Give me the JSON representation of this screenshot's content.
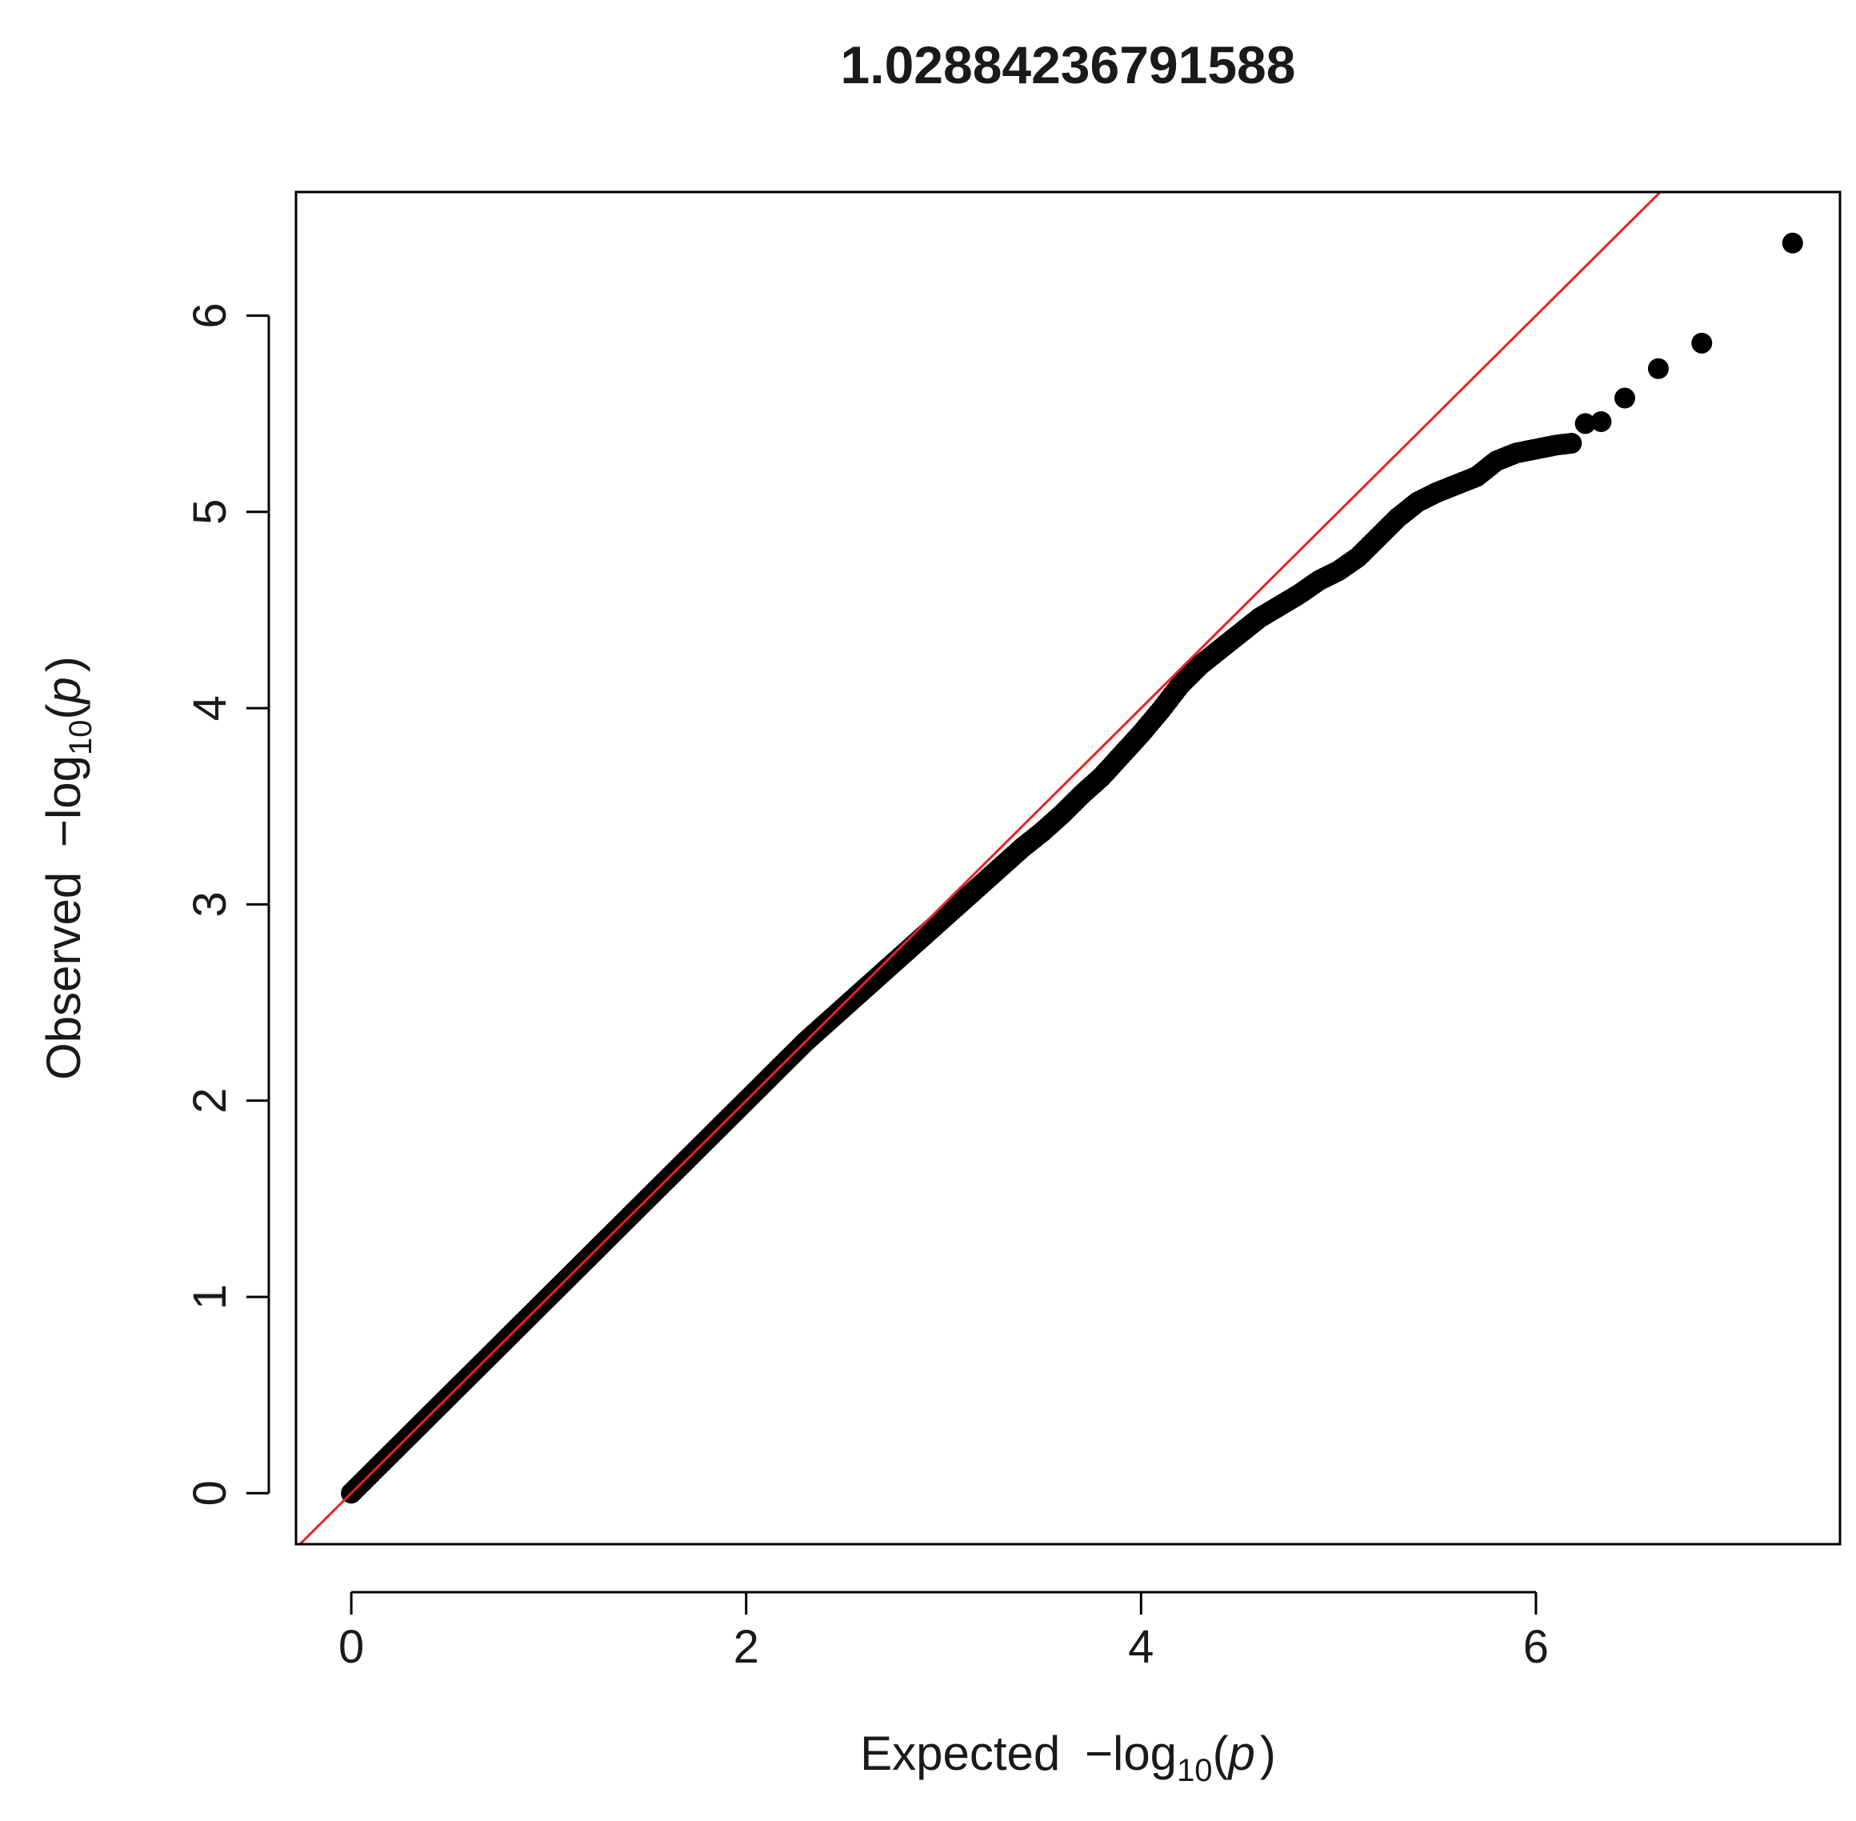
{
  "chart_data": {
    "type": "scatter",
    "title": "1.02884236791588",
    "xlabel": {
      "prefix": "Expected",
      "minus": "−",
      "log": "log",
      "base": "10",
      "open": "(",
      "var": "p",
      "close": ")"
    },
    "ylabel": {
      "prefix": "Observed",
      "minus": "−",
      "log": "log",
      "base": "10",
      "open": "(",
      "var": "p",
      "close": ")"
    },
    "xlim": [
      -0.28,
      7.54
    ],
    "ylim": [
      -0.26,
      6.63
    ],
    "xticks": [
      0,
      2,
      4,
      6
    ],
    "yticks": [
      0,
      1,
      2,
      3,
      4,
      5,
      6
    ],
    "grid": false,
    "reference_line": {
      "slope": 1,
      "intercept": 0,
      "color": "#e8231f"
    },
    "point_color": "#000000",
    "series": [
      {
        "points": [
          [
            0.0,
            0.0
          ],
          [
            0.05,
            0.05
          ],
          [
            0.1,
            0.1
          ],
          [
            0.2,
            0.2
          ],
          [
            0.3,
            0.3
          ],
          [
            0.4,
            0.4
          ],
          [
            0.5,
            0.5
          ],
          [
            0.6,
            0.6
          ],
          [
            0.7,
            0.7
          ],
          [
            0.8,
            0.8
          ],
          [
            0.9,
            0.9
          ],
          [
            1.0,
            1.0
          ],
          [
            1.1,
            1.1
          ],
          [
            1.2,
            1.2
          ],
          [
            1.3,
            1.3
          ],
          [
            1.4,
            1.4
          ],
          [
            1.5,
            1.5
          ],
          [
            1.6,
            1.6
          ],
          [
            1.7,
            1.7
          ],
          [
            1.8,
            1.8
          ],
          [
            1.9,
            1.9
          ],
          [
            2.0,
            2.0
          ],
          [
            2.1,
            2.1
          ],
          [
            2.2,
            2.2
          ],
          [
            2.3,
            2.3
          ],
          [
            2.4,
            2.39
          ],
          [
            2.5,
            2.48
          ],
          [
            2.6,
            2.57
          ],
          [
            2.7,
            2.66
          ],
          [
            2.8,
            2.75
          ],
          [
            2.9,
            2.84
          ],
          [
            3.0,
            2.93
          ],
          [
            3.1,
            3.02
          ],
          [
            3.2,
            3.11
          ],
          [
            3.3,
            3.2
          ],
          [
            3.4,
            3.29
          ],
          [
            3.5,
            3.37
          ],
          [
            3.6,
            3.46
          ],
          [
            3.7,
            3.56
          ],
          [
            3.8,
            3.65
          ],
          [
            3.9,
            3.76
          ],
          [
            4.0,
            3.87
          ],
          [
            4.1,
            3.99
          ],
          [
            4.2,
            4.12
          ],
          [
            4.3,
            4.22
          ],
          [
            4.4,
            4.3
          ],
          [
            4.5,
            4.38
          ],
          [
            4.6,
            4.46
          ],
          [
            4.7,
            4.52
          ],
          [
            4.8,
            4.58
          ],
          [
            4.9,
            4.65
          ],
          [
            5.0,
            4.7
          ],
          [
            5.1,
            4.77
          ],
          [
            5.2,
            4.87
          ],
          [
            5.3,
            4.97
          ],
          [
            5.4,
            5.05
          ],
          [
            5.5,
            5.1
          ],
          [
            5.6,
            5.14
          ],
          [
            5.7,
            5.18
          ],
          [
            5.8,
            5.26
          ],
          [
            5.9,
            5.3
          ],
          [
            6.0,
            5.32
          ],
          [
            6.1,
            5.34
          ],
          [
            6.18,
            5.35
          ],
          [
            6.25,
            5.45
          ],
          [
            6.33,
            5.46
          ],
          [
            6.45,
            5.58
          ],
          [
            6.62,
            5.73
          ],
          [
            6.84,
            5.86
          ],
          [
            7.3,
            6.37
          ]
        ]
      }
    ]
  }
}
